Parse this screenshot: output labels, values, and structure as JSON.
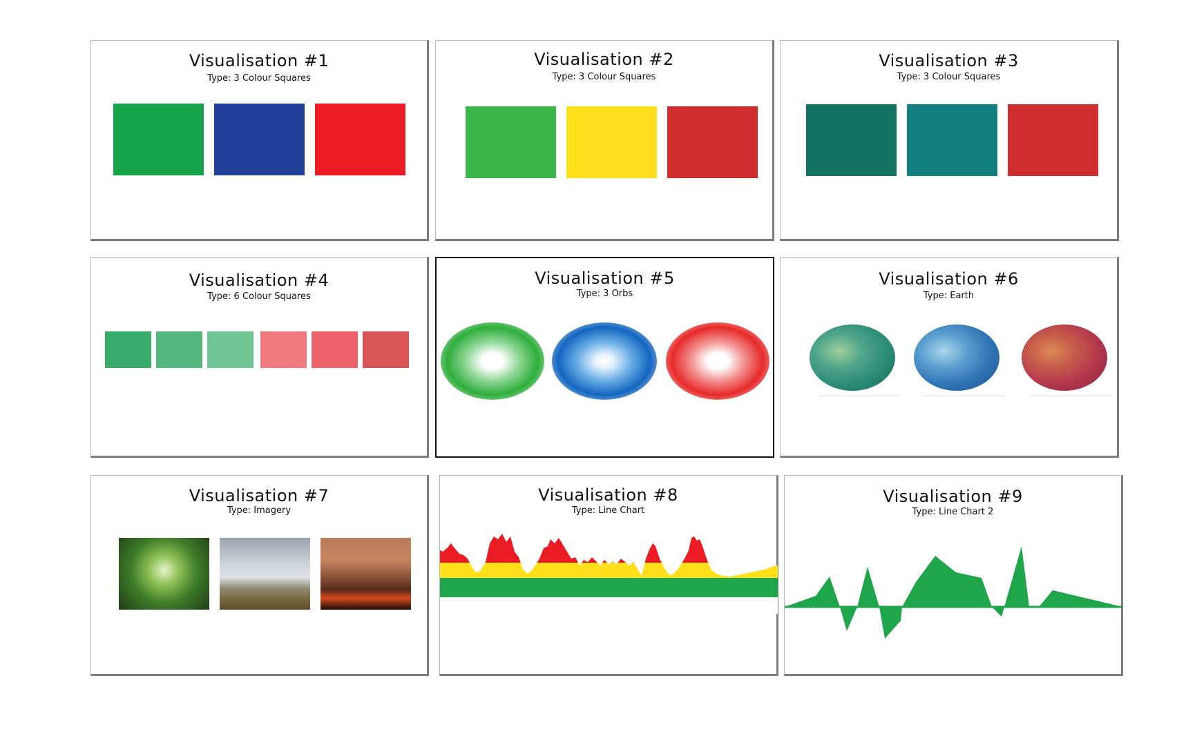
{
  "panels": [
    {
      "title": "Visualisation #1",
      "type": "Type: 3 Colour Squares",
      "colors": [
        "#16a34a",
        "#21409a",
        "#ec1c24"
      ]
    },
    {
      "title": "Visualisation #2",
      "type": "Type: 3 Colour Squares",
      "colors": [
        "#3cb64a",
        "#ffe01b",
        "#cf2e2e"
      ]
    },
    {
      "title": "Visualisation #3",
      "type": "Type: 3 Colour Squares",
      "colors": [
        "#137561",
        "#128080",
        "#cf2e2e"
      ]
    },
    {
      "title": "Visualisation #4",
      "type": "Type: 6 Colour Squares",
      "colors": [
        "#3aac6a",
        "#55b87f",
        "#6fc594",
        "#f17a81",
        "#ee626b",
        "#d95555"
      ]
    },
    {
      "title": "Visualisation #5",
      "type": "Type: 3 Orbs",
      "colors": [
        "#2eae3c",
        "#1466c0",
        "#e82a2a"
      ]
    },
    {
      "title": "Visualisation #6",
      "type": "Type: Earth",
      "colors": [
        "#2c8d76",
        "#2f74b5",
        "#b3374d"
      ]
    },
    {
      "title": "Visualisation #7",
      "type": "Type: Imagery",
      "images": [
        "forest-canopy-photo",
        "grassland-sky-photo",
        "wildfire-photo"
      ]
    },
    {
      "title": "Visualisation #8",
      "type": "Type:  Line Chart",
      "colors": [
        "#1fa54a",
        "#ffe01b",
        "#ec1c24"
      ]
    },
    {
      "title": "Visualisation #9",
      "type": "Type: Line Chart 2",
      "colors": [
        "#1fa54a"
      ]
    }
  ]
}
